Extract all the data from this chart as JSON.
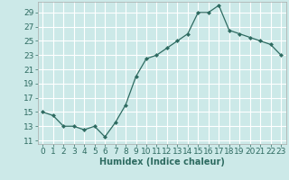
{
  "x": [
    0,
    1,
    2,
    3,
    4,
    5,
    6,
    7,
    8,
    9,
    10,
    11,
    12,
    13,
    14,
    15,
    16,
    17,
    18,
    19,
    20,
    21,
    22,
    23
  ],
  "y": [
    15,
    14.5,
    13,
    13,
    12.5,
    13,
    11.5,
    13.5,
    16,
    20,
    22.5,
    23,
    24,
    25,
    26,
    29,
    29,
    30,
    26.5,
    26,
    25.5,
    25,
    24.5,
    23
  ],
  "xlabel": "Humidex (Indice chaleur)",
  "xlim": [
    -0.5,
    23.5
  ],
  "ylim": [
    10.5,
    30.5
  ],
  "yticks": [
    11,
    13,
    15,
    17,
    19,
    21,
    23,
    25,
    27,
    29
  ],
  "xtick_labels": [
    "0",
    "1",
    "2",
    "3",
    "4",
    "5",
    "6",
    "7",
    "8",
    "9",
    "10",
    "11",
    "12",
    "13",
    "14",
    "15",
    "16",
    "17",
    "18",
    "19",
    "20",
    "21",
    "22",
    "23"
  ],
  "bg_color": "#cce9e8",
  "grid_color": "#ffffff",
  "line_color": "#2e6b61",
  "marker_color": "#2e6b61",
  "label_fontsize": 7,
  "tick_fontsize": 6.5
}
